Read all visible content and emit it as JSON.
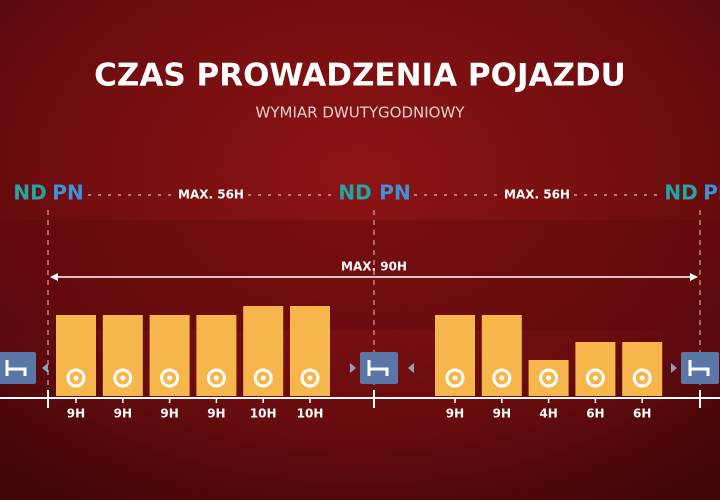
{
  "chart_data": {
    "type": "bar",
    "title": "CZAS PROWADZENIA POJAZDU",
    "subtitle": "WYMIAR DWUTYGODNIOWY",
    "day_markers": [
      "ND",
      "PN",
      "ND",
      "PN",
      "ND",
      "PN"
    ],
    "weekly_limits": [
      "MAX. 56H",
      "MAX. 56H"
    ],
    "total_limit": "MAX. 90H",
    "color": "#f7b64c",
    "weeks": [
      {
        "values": [
          9,
          9,
          9,
          9,
          10,
          10
        ],
        "value_labels": [
          "9H",
          "9H",
          "9H",
          "9H",
          "10H",
          "10H"
        ]
      },
      {
        "values": [
          9,
          9,
          4,
          6,
          6
        ],
        "value_labels": [
          "9H",
          "9H",
          "4H",
          "6H",
          "6H"
        ]
      }
    ]
  }
}
